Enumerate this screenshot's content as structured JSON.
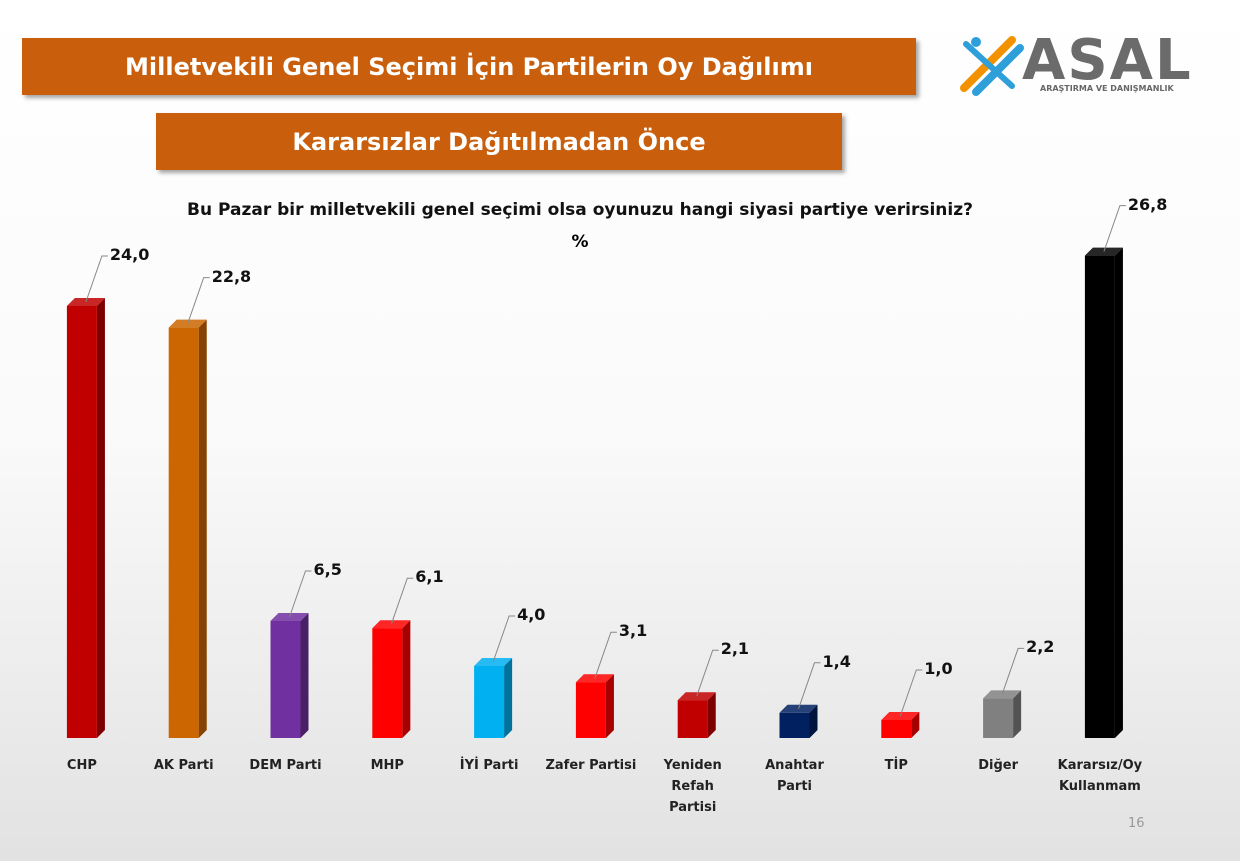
{
  "chart_data": {
    "type": "bar",
    "title": "Milletvekili Genel Seçimi İçin Partilerin Oy Dağılımı",
    "subtitle": "Kararsızlar Dağıtılmadan Önce",
    "question": "Bu Pazar bir milletvekili genel seçimi olsa oyunuzu hangi siyasi partiye verirsiniz?",
    "unit_label": "%",
    "categories": [
      "CHP",
      "AK Parti",
      "DEM Parti",
      "MHP",
      "İYİ Parti",
      "Zafer Partisi",
      "Yeniden\nRefah\nPartisi",
      "Anahtar\nParti",
      "TİP",
      "Diğer",
      "Kararsız/Oy\nKullanmam"
    ],
    "values": [
      24.0,
      22.8,
      6.5,
      6.1,
      4.0,
      3.1,
      2.1,
      1.4,
      1.0,
      2.2,
      26.8
    ],
    "value_labels": [
      "24,0",
      "22,8",
      "6,5",
      "6,1",
      "4,0",
      "3,1",
      "2,1",
      "1,4",
      "1,0",
      "2,2",
      "26,8"
    ],
    "colors": [
      "#c00000",
      "#cc6600",
      "#7030a0",
      "#ff0000",
      "#00b0f0",
      "#ff0000",
      "#c00000",
      "#002060",
      "#ff0000",
      "#808080",
      "#000000"
    ]
  },
  "logo": {
    "name": "ASAL",
    "tagline": "ARAŞTIRMA VE DANIŞMANLIK"
  },
  "page_number": "16"
}
